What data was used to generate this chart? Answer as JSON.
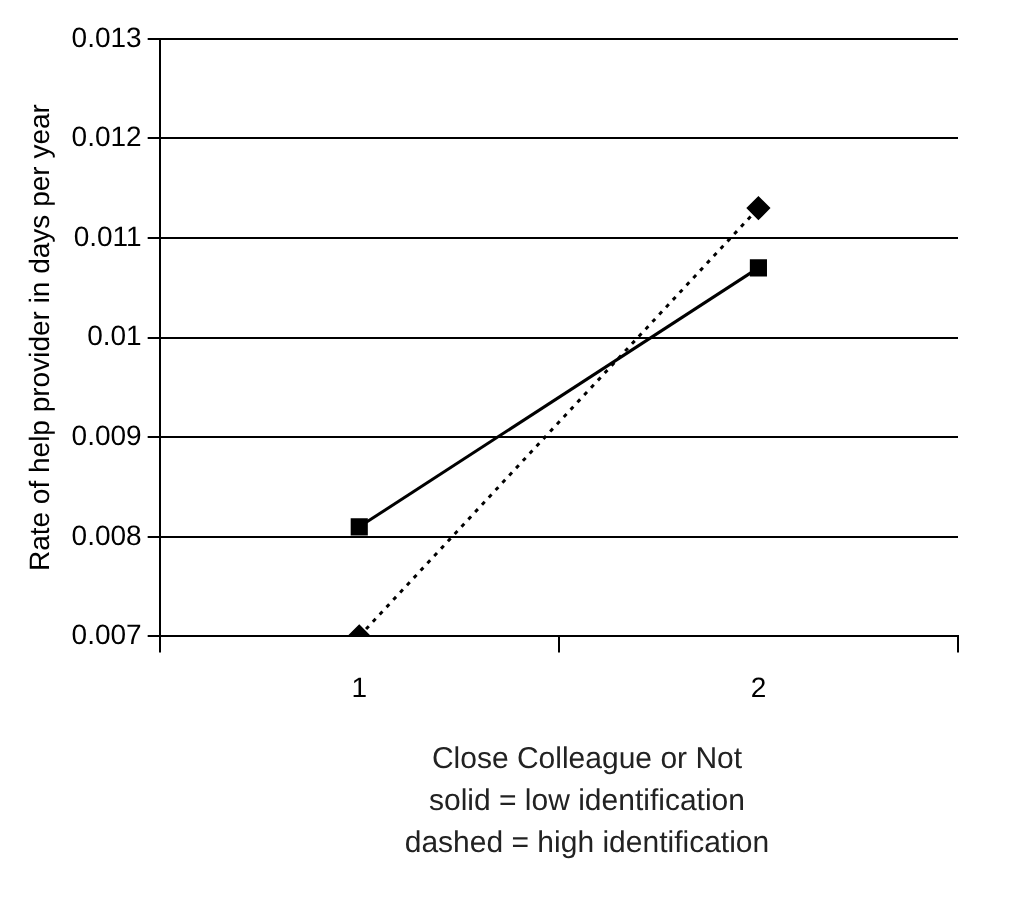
{
  "chart_data": {
    "type": "line",
    "xlabel": "Close Colleague or Not",
    "ylabel": "Rate of help provider in days per year",
    "categories": [
      "1",
      "2"
    ],
    "series": [
      {
        "color": "#000000",
        "values": [
          0.0081,
          0.0107
        ],
        "marker": "square",
        "line_style": "solid"
      },
      {
        "color": "#000000",
        "values": [
          0.007,
          0.0113
        ],
        "marker": "diamond",
        "line_style": "dotted"
      }
    ],
    "ylim": [
      0.007,
      0.013
    ],
    "yticks": [
      0.007,
      0.008,
      0.009,
      0.01,
      0.011,
      0.012,
      0.013
    ],
    "grid": "y",
    "legend": false,
    "annotations": [
      "solid = low identification",
      "dashed = high identification"
    ]
  }
}
